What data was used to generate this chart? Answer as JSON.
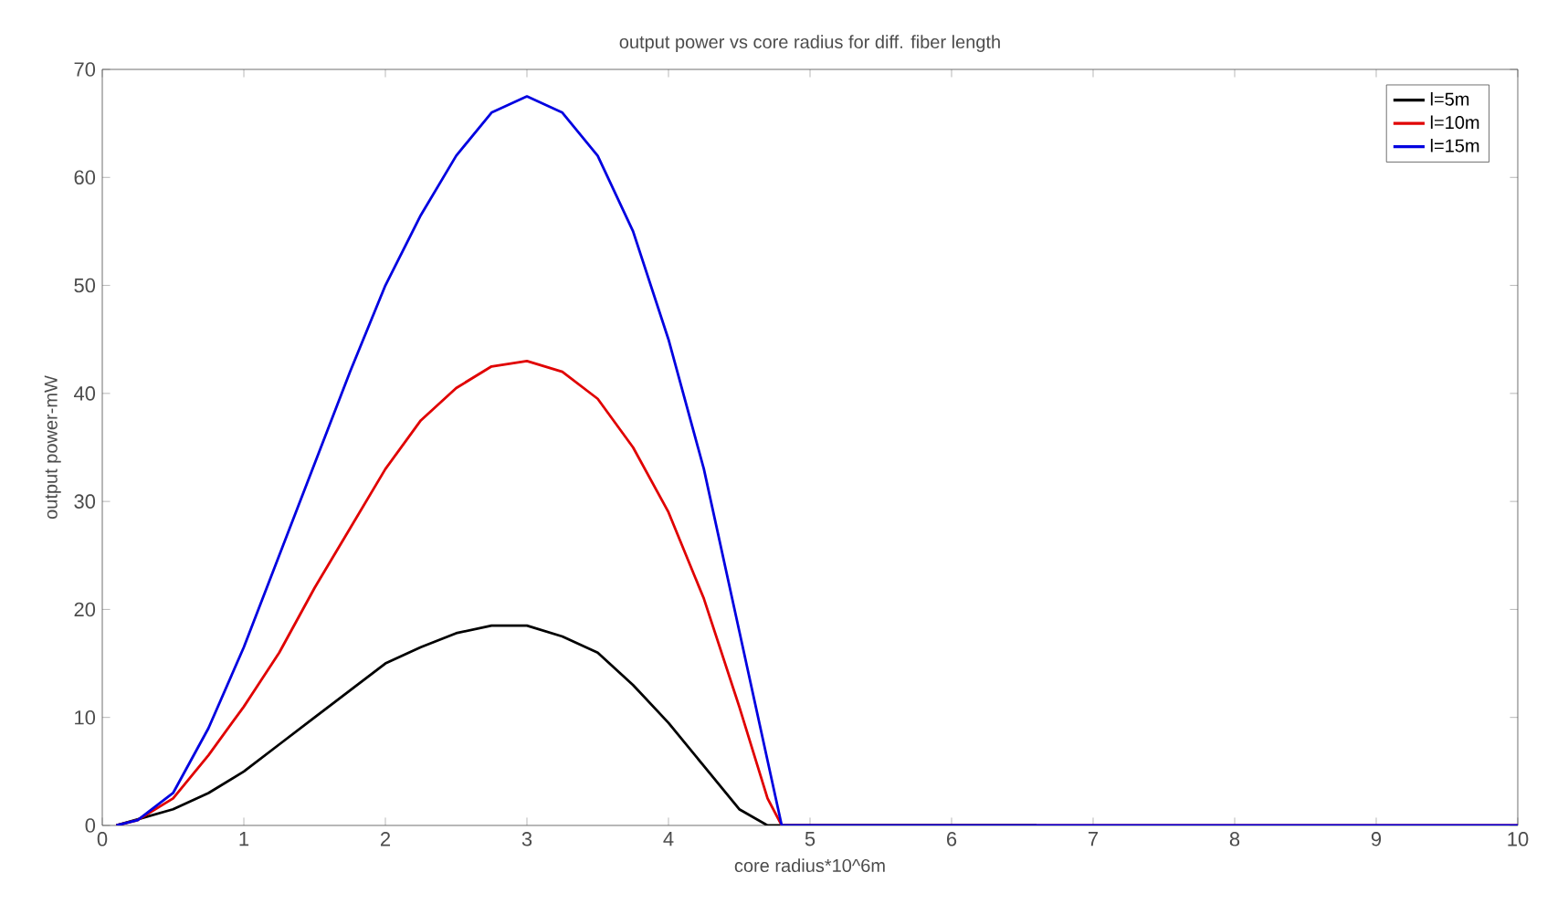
{
  "chart_data": {
    "type": "line",
    "title": "output power vs core radius for diff. fiber length",
    "xlabel": "core radius*10^6m",
    "ylabel": "output power-mW",
    "xlim": [
      0,
      10
    ],
    "xticks": [
      0,
      1,
      2,
      3,
      4,
      5,
      6,
      7,
      8,
      9,
      10
    ],
    "ylim": [
      0,
      70
    ],
    "yticks": [
      0,
      10,
      20,
      30,
      40,
      50,
      60,
      70
    ],
    "legend": "top right",
    "grid": false,
    "series": [
      {
        "name": "l=5m",
        "color": "#000000",
        "x": [
          0.1,
          0.5,
          0.75,
          1,
          1.25,
          1.5,
          1.75,
          2,
          2.25,
          2.5,
          2.75,
          3,
          3.25,
          3.5,
          3.75,
          4,
          4.25,
          4.5,
          4.7,
          4.8,
          6.6
        ],
        "values": [
          0,
          1.5,
          3,
          5,
          7.5,
          10,
          12.5,
          15,
          16.5,
          17.8,
          18.5,
          18.5,
          17.5,
          16,
          13,
          9.5,
          5.5,
          1.5,
          0,
          0,
          0
        ]
      },
      {
        "name": "l=10m",
        "color": "#e00000",
        "x": [
          0.1,
          0.25,
          0.5,
          0.75,
          1,
          1.25,
          1.5,
          1.75,
          2,
          2.25,
          2.5,
          2.75,
          3,
          3.25,
          3.5,
          3.75,
          4,
          4.25,
          4.5,
          4.7,
          4.8,
          10
        ],
        "values": [
          0,
          0.5,
          2.5,
          6.5,
          11,
          16,
          22,
          27.5,
          33,
          37.5,
          40.5,
          42.5,
          43,
          42,
          39.5,
          35,
          29,
          21,
          11,
          2.5,
          0,
          0
        ]
      },
      {
        "name": "l=15m",
        "color": "#0000e0",
        "x": [
          0.1,
          0.25,
          0.5,
          0.75,
          1,
          1.25,
          1.5,
          1.75,
          2,
          2.25,
          2.5,
          2.75,
          3,
          3.25,
          3.5,
          3.75,
          4,
          4.25,
          4.5,
          4.7,
          4.8,
          10
        ],
        "values": [
          0,
          0.5,
          3,
          9,
          16.5,
          25,
          33.5,
          42,
          50,
          56.5,
          62,
          66,
          67.5,
          66,
          62,
          55,
          45,
          33,
          18,
          6,
          0,
          0
        ]
      }
    ]
  }
}
